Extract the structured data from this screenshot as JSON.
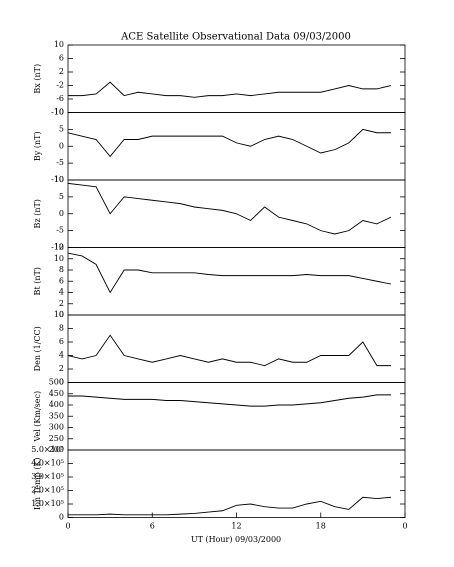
{
  "chart_data": [
    {
      "type": "line",
      "title": "ACE Satellite Observational Data   09/03/2000",
      "ylabel": "Bx (nT)",
      "x": [
        0,
        1,
        2,
        3,
        4,
        5,
        6,
        7,
        8,
        9,
        10,
        11,
        12,
        13,
        14,
        15,
        16,
        17,
        18,
        19,
        20,
        21,
        22,
        23
      ],
      "values": [
        -5,
        -5,
        -4.5,
        -1,
        -5,
        -4,
        -4.5,
        -5,
        -5,
        -5.5,
        -5,
        -5,
        -4.5,
        -5,
        -4.5,
        -4,
        -4,
        -4,
        -4,
        -3,
        -2,
        -3,
        -3,
        -2
      ],
      "color": "#000000",
      "xlim": [
        0,
        24
      ],
      "ylim": [
        -10,
        10
      ],
      "yticks": [
        -10,
        -6,
        -2,
        2,
        6,
        10
      ]
    },
    {
      "type": "line",
      "ylabel": "By (nT)",
      "x": [
        0,
        1,
        2,
        3,
        4,
        5,
        6,
        7,
        8,
        9,
        10,
        11,
        12,
        13,
        14,
        15,
        16,
        17,
        18,
        19,
        20,
        21,
        22,
        23
      ],
      "values": [
        4,
        3,
        2,
        -3,
        2,
        2,
        3,
        3,
        3,
        3,
        3,
        3,
        1,
        0,
        2,
        3,
        2,
        0,
        -2,
        -1,
        1,
        5,
        4,
        4
      ],
      "color": "#000000",
      "xlim": [
        0,
        24
      ],
      "ylim": [
        -10,
        10
      ],
      "yticks": [
        -10,
        -5,
        0,
        5,
        10
      ]
    },
    {
      "type": "line",
      "ylabel": "Bz (nT)",
      "x": [
        0,
        1,
        2,
        3,
        4,
        5,
        6,
        7,
        8,
        9,
        10,
        11,
        12,
        13,
        14,
        15,
        16,
        17,
        18,
        19,
        20,
        21,
        22,
        23
      ],
      "values": [
        9,
        8.5,
        8,
        0,
        5,
        4.5,
        4,
        3.5,
        3,
        2,
        1.5,
        1,
        0,
        -2,
        2,
        -1,
        -2,
        -3,
        -5,
        -6,
        -5,
        -2,
        -3,
        -1
      ],
      "color": "#000000",
      "xlim": [
        0,
        24
      ],
      "ylim": [
        -10,
        10
      ],
      "yticks": [
        -10,
        -5,
        0,
        5,
        10
      ]
    },
    {
      "type": "line",
      "ylabel": "Bt (nT)",
      "x": [
        0,
        1,
        2,
        3,
        4,
        5,
        6,
        7,
        8,
        9,
        10,
        11,
        12,
        13,
        14,
        15,
        16,
        17,
        18,
        19,
        20,
        21,
        22,
        23
      ],
      "values": [
        11,
        10.5,
        9,
        4,
        8,
        8,
        7.5,
        7.5,
        7.5,
        7.5,
        7.2,
        7,
        7,
        7,
        7,
        7,
        7,
        7.2,
        7,
        7,
        7,
        6.5,
        6,
        5.5
      ],
      "color": "#000000",
      "xlim": [
        0,
        24
      ],
      "ylim": [
        0,
        12
      ],
      "yticks": [
        0,
        2,
        4,
        6,
        8,
        10,
        12
      ]
    },
    {
      "type": "line",
      "ylabel": "Den (1/CC)",
      "x": [
        0,
        1,
        2,
        3,
        4,
        5,
        6,
        7,
        8,
        9,
        10,
        11,
        12,
        13,
        14,
        15,
        16,
        17,
        18,
        19,
        20,
        21,
        22,
        23
      ],
      "values": [
        4,
        3.5,
        4,
        7,
        4,
        3.5,
        3,
        3.5,
        4,
        3.5,
        3,
        3.5,
        3,
        3,
        2.5,
        3.5,
        3,
        3,
        4,
        4,
        4,
        6,
        2.5,
        2.5
      ],
      "color": "#000000",
      "xlim": [
        0,
        24
      ],
      "ylim": [
        0,
        10
      ],
      "yticks": [
        0,
        2,
        4,
        6,
        8,
        10
      ]
    },
    {
      "type": "line",
      "ylabel": "Vel (Km/sec)",
      "x": [
        0,
        1,
        2,
        3,
        4,
        5,
        6,
        7,
        8,
        9,
        10,
        11,
        12,
        13,
        14,
        15,
        16,
        17,
        18,
        19,
        20,
        21,
        22,
        23
      ],
      "values": [
        440,
        440,
        435,
        430,
        425,
        425,
        425,
        420,
        420,
        415,
        410,
        405,
        400,
        395,
        395,
        400,
        400,
        405,
        410,
        420,
        430,
        435,
        445,
        445
      ],
      "color": "#000000",
      "xlim": [
        0,
        24
      ],
      "ylim": [
        200,
        500
      ],
      "yticks": [
        200,
        250,
        300,
        350,
        400,
        450,
        500
      ]
    },
    {
      "type": "line",
      "ylabel": "Ion Temp (K)",
      "xlabel": "UT (Hour)   09/03/2000",
      "x": [
        0,
        1,
        2,
        3,
        4,
        5,
        6,
        7,
        8,
        9,
        10,
        11,
        12,
        13,
        14,
        15,
        16,
        17,
        18,
        19,
        20,
        21,
        22,
        23
      ],
      "values": [
        20000,
        20000,
        20000,
        25000,
        20000,
        20000,
        20000,
        20000,
        25000,
        30000,
        40000,
        50000,
        90000,
        100000,
        80000,
        70000,
        70000,
        100000,
        120000,
        80000,
        60000,
        150000,
        140000,
        150000
      ],
      "color": "#000000",
      "xlim": [
        0,
        24
      ],
      "ylim": [
        0,
        500000
      ],
      "yticks": [
        0,
        {
          "value": 100000,
          "label": "1.0×10⁵"
        },
        {
          "value": 200000,
          "label": "2.0×10⁵"
        },
        {
          "value": 300000,
          "label": "3.0×10⁵"
        },
        {
          "value": 400000,
          "label": "4.0×10⁵"
        },
        {
          "value": 500000,
          "label": "5.0×10⁵"
        }
      ],
      "xticks": [
        0,
        6,
        12,
        18,
        {
          "value": 24,
          "label": "0"
        }
      ]
    }
  ]
}
